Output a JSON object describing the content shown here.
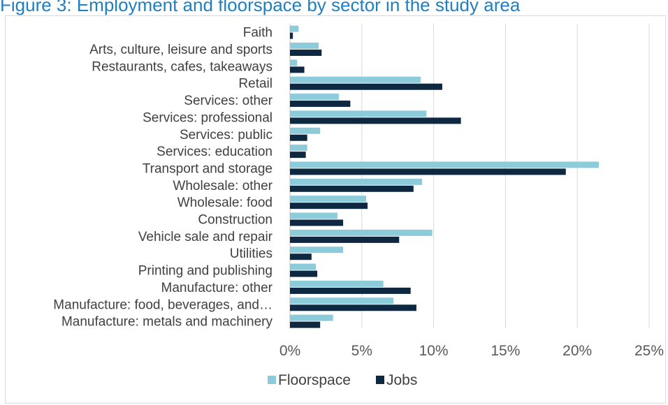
{
  "header": {
    "title": "Figure 3: Employment and floorspace by sector in the study area"
  },
  "chart_data": {
    "type": "bar",
    "orientation": "horizontal",
    "title": "",
    "xlabel": "",
    "ylabel": "",
    "xlim": [
      0,
      25
    ],
    "x_tick_labels": [
      "0%",
      "5%",
      "10%",
      "15%",
      "20%",
      "25%"
    ],
    "x_tick_values": [
      0,
      5,
      10,
      15,
      20,
      25
    ],
    "grid": "vertical",
    "legend_position": "bottom",
    "categories": [
      "Faith",
      "Arts, culture, leisure and sports",
      "Restaurants, cafes, takeaways",
      "Retail",
      "Services: other",
      "Services: professional",
      "Services: public",
      "Services: education",
      "Transport and storage",
      "Wholesale: other",
      "Wholesale: food",
      "Construction",
      "Vehicle sale and repair",
      "Utilities",
      "Printing and publishing",
      "Manufacture: other",
      "Manufacture: food, beverages, and…",
      "Manufacture: metals and machinery"
    ],
    "series": [
      {
        "name": "Floorspace",
        "color": "#8ccbd9",
        "values": [
          0.6,
          2.0,
          0.5,
          9.1,
          3.4,
          9.5,
          2.1,
          1.2,
          21.5,
          9.2,
          5.3,
          3.3,
          9.9,
          3.7,
          1.8,
          6.5,
          7.2,
          3.0
        ]
      },
      {
        "name": "Jobs",
        "color": "#0e2842",
        "values": [
          0.2,
          2.2,
          1.0,
          10.6,
          4.2,
          11.9,
          1.2,
          1.1,
          19.2,
          8.6,
          5.4,
          3.7,
          7.6,
          1.5,
          1.9,
          8.4,
          8.8,
          2.1
        ]
      }
    ]
  }
}
